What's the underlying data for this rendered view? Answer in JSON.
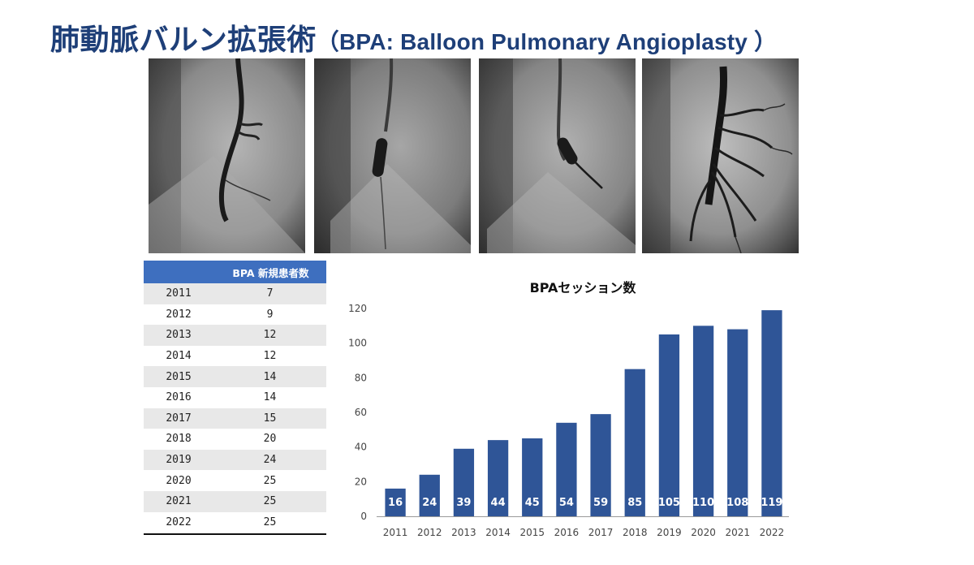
{
  "title": {
    "main": "肺動脈バルン拡張術",
    "sub": "（BPA: Balloon Pulmonary Angioplasty ）"
  },
  "images": [
    {
      "name": "angiogram-1"
    },
    {
      "name": "angiogram-2"
    },
    {
      "name": "angiogram-3"
    },
    {
      "name": "angiogram-4"
    }
  ],
  "table": {
    "headers": [
      "",
      "BPA  新規患者数"
    ],
    "rows": [
      [
        "2011",
        "7"
      ],
      [
        "2012",
        "9"
      ],
      [
        "2013",
        "12"
      ],
      [
        "2014",
        "12"
      ],
      [
        "2015",
        "14"
      ],
      [
        "2016",
        "14"
      ],
      [
        "2017",
        "15"
      ],
      [
        "2018",
        "20"
      ],
      [
        "2019",
        "24"
      ],
      [
        "2020",
        "25"
      ],
      [
        "2021",
        "25"
      ],
      [
        "2022",
        "25"
      ]
    ]
  },
  "colors": {
    "title": "#1e3f78",
    "table_header": "#3e6fbf",
    "bar": "#2f5597",
    "row_alt": "#e8e8e8"
  },
  "chart_data": {
    "type": "bar",
    "title": "BPAセッション数",
    "categories": [
      "2011",
      "2012",
      "2013",
      "2014",
      "2015",
      "2016",
      "2017",
      "2018",
      "2019",
      "2020",
      "2021",
      "2022"
    ],
    "values": [
      16,
      24,
      39,
      44,
      45,
      54,
      59,
      85,
      105,
      110,
      108,
      119
    ],
    "ylim": [
      0,
      120
    ],
    "yticks": [
      0,
      20,
      40,
      60,
      80,
      100,
      120
    ],
    "xlabel": "",
    "ylabel": "",
    "grid": false,
    "data_labels": true
  }
}
